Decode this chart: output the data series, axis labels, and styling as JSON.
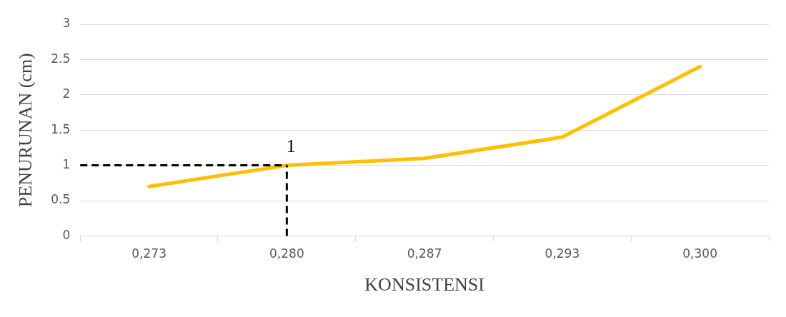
{
  "chart_data": {
    "type": "line",
    "xlabel": "KONSISTENSI",
    "ylabel": "PENURUNAN (cm)",
    "categories": [
      "0,273",
      "0,280",
      "0,287",
      "0,293",
      "0,300"
    ],
    "series": [
      {
        "color": "#ffc000",
        "values": [
          0.7,
          1.0,
          1.1,
          1.4,
          2.4
        ]
      }
    ],
    "ylim": [
      0,
      3
    ],
    "yticks": [
      0,
      0.5,
      1,
      1.5,
      2,
      2.5,
      3
    ],
    "grid": "y",
    "legend": false,
    "marker": "none",
    "line_style": "solid",
    "ref_lines": [
      {
        "axis": "y",
        "value": 1,
        "label": "1",
        "color": "#000000",
        "line_style": "dashed"
      },
      {
        "axis": "x",
        "value": "0,280",
        "color": "#000000",
        "line_style": "dashed"
      }
    ]
  }
}
